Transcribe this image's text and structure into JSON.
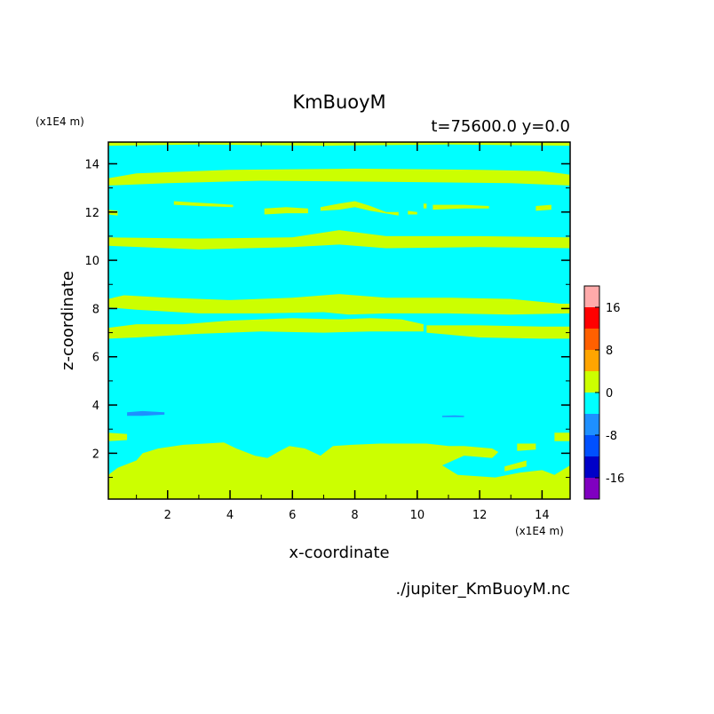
{
  "chart_data": {
    "type": "heatmap",
    "title": "KmBuoyM",
    "subtitle": "t=75600.0 y=0.0",
    "xlabel": "x-coordinate",
    "ylabel": "z-coordinate",
    "x_unit": "(x1E4 m)",
    "y_unit": "(x1E4 m)",
    "xlim": [
      0.1,
      14.9
    ],
    "ylim": [
      0.1,
      14.9
    ],
    "x_ticks": [
      2,
      4,
      6,
      8,
      10,
      12,
      14
    ],
    "y_ticks": [
      2,
      4,
      6,
      8,
      10,
      12,
      14
    ],
    "background_level_color": "#00ffff",
    "levels": [
      {
        "range": [
          -20,
          -16
        ],
        "color": "#8000c0"
      },
      {
        "range": [
          -16,
          -12
        ],
        "color": "#0000c8"
      },
      {
        "range": [
          -12,
          -8
        ],
        "color": "#0050ff"
      },
      {
        "range": [
          -8,
          -4
        ],
        "color": "#1e90ff"
      },
      {
        "range": [
          -4,
          0
        ],
        "color": "#00ffff"
      },
      {
        "range": [
          0,
          4
        ],
        "color": "#ccff00"
      },
      {
        "range": [
          4,
          8
        ],
        "color": "#ffa500"
      },
      {
        "range": [
          8,
          12
        ],
        "color": "#ff6000"
      },
      {
        "range": [
          12,
          16
        ],
        "color": "#ff0000"
      },
      {
        "range": [
          16,
          20
        ],
        "color": "#ffaaaa"
      }
    ],
    "colorbar_ticks": [
      16,
      8,
      0,
      -8,
      -16
    ],
    "positive_regions": [
      {
        "name": "band-z14.9",
        "top": [
          [
            0.1,
            14.95
          ],
          [
            14.9,
            14.95
          ]
        ],
        "bottom": [
          [
            0.1,
            14.75
          ],
          [
            3,
            14.8
          ],
          [
            7,
            14.75
          ],
          [
            11,
            14.8
          ],
          [
            14.9,
            14.75
          ]
        ]
      },
      {
        "name": "band-z13.5",
        "top": [
          [
            0.1,
            13.4
          ],
          [
            1,
            13.6
          ],
          [
            4,
            13.75
          ],
          [
            8,
            13.8
          ],
          [
            12,
            13.75
          ],
          [
            14,
            13.7
          ],
          [
            14.9,
            13.55
          ]
        ],
        "bottom": [
          [
            0.1,
            13.1
          ],
          [
            2,
            13.2
          ],
          [
            5,
            13.3
          ],
          [
            9,
            13.25
          ],
          [
            13,
            13.2
          ],
          [
            14.9,
            13.1
          ]
        ]
      },
      {
        "name": "band-z12a",
        "top": [
          [
            0.1,
            12.1
          ],
          [
            0.4,
            12.05
          ]
        ],
        "bottom": [
          [
            0.1,
            11.9
          ],
          [
            0.4,
            11.85
          ]
        ]
      },
      {
        "name": "band-z12b",
        "top": [
          [
            2.2,
            12.45
          ],
          [
            2.8,
            12.4
          ],
          [
            3.5,
            12.35
          ],
          [
            4.1,
            12.3
          ]
        ],
        "bottom": [
          [
            2.2,
            12.3
          ],
          [
            3,
            12.25
          ],
          [
            4.1,
            12.2
          ]
        ]
      },
      {
        "name": "band-z12c",
        "top": [
          [
            5.1,
            12.15
          ],
          [
            5.8,
            12.2
          ],
          [
            6.5,
            12.15
          ]
        ],
        "bottom": [
          [
            5.1,
            11.9
          ],
          [
            5.8,
            11.95
          ],
          [
            6.5,
            11.95
          ]
        ]
      },
      {
        "name": "band-z12d",
        "top": [
          [
            6.9,
            12.2
          ],
          [
            7.5,
            12.35
          ],
          [
            8,
            12.45
          ],
          [
            8.5,
            12.25
          ],
          [
            9,
            12.0
          ],
          [
            9.4,
            12.0
          ]
        ],
        "bottom": [
          [
            6.9,
            12.05
          ],
          [
            7.5,
            12.1
          ],
          [
            8,
            12.2
          ],
          [
            8.5,
            12.05
          ],
          [
            9.4,
            11.85
          ]
        ]
      },
      {
        "name": "band-z12e",
        "top": [
          [
            9.7,
            12.05
          ],
          [
            10.0,
            12.0
          ]
        ],
        "bottom": [
          [
            9.7,
            11.9
          ],
          [
            10.0,
            11.9
          ]
        ]
      },
      {
        "name": "band-z12f",
        "top": [
          [
            10.2,
            12.35
          ],
          [
            10.3,
            12.35
          ]
        ],
        "bottom": [
          [
            10.2,
            12.15
          ],
          [
            10.3,
            12.15
          ]
        ]
      },
      {
        "name": "band-z12g",
        "top": [
          [
            10.5,
            12.3
          ],
          [
            11.5,
            12.3
          ],
          [
            12.3,
            12.25
          ]
        ],
        "bottom": [
          [
            10.5,
            12.1
          ],
          [
            11.5,
            12.15
          ],
          [
            12.3,
            12.15
          ]
        ]
      },
      {
        "name": "band-z12h",
        "top": [
          [
            13.8,
            12.25
          ],
          [
            14.3,
            12.3
          ]
        ],
        "bottom": [
          [
            13.8,
            12.05
          ],
          [
            14.3,
            12.1
          ]
        ]
      },
      {
        "name": "band-z10.8",
        "top": [
          [
            0.1,
            10.95
          ],
          [
            3,
            10.9
          ],
          [
            6,
            10.95
          ],
          [
            7.5,
            11.25
          ],
          [
            9,
            11.0
          ],
          [
            12,
            11.0
          ],
          [
            14.9,
            10.95
          ]
        ],
        "bottom": [
          [
            0.1,
            10.6
          ],
          [
            3,
            10.45
          ],
          [
            6,
            10.55
          ],
          [
            7.5,
            10.65
          ],
          [
            9,
            10.5
          ],
          [
            12,
            10.55
          ],
          [
            14.9,
            10.5
          ]
        ]
      },
      {
        "name": "band-z8.3",
        "top": [
          [
            0.1,
            8.4
          ],
          [
            0.6,
            8.55
          ],
          [
            2,
            8.45
          ],
          [
            4,
            8.35
          ],
          [
            6,
            8.45
          ],
          [
            7.5,
            8.6
          ],
          [
            9,
            8.45
          ],
          [
            11,
            8.45
          ],
          [
            13,
            8.4
          ],
          [
            14.6,
            8.2
          ],
          [
            14.9,
            8.2
          ]
        ],
        "bottom": [
          [
            0.1,
            8.05
          ],
          [
            1,
            7.95
          ],
          [
            3,
            7.8
          ],
          [
            5,
            7.8
          ],
          [
            7,
            7.85
          ],
          [
            7.8,
            7.75
          ],
          [
            9,
            7.8
          ],
          [
            11,
            7.8
          ],
          [
            13,
            7.75
          ],
          [
            14.9,
            7.8
          ]
        ]
      },
      {
        "name": "band-z7",
        "top": [
          [
            0.1,
            7.2
          ],
          [
            1,
            7.35
          ],
          [
            2.5,
            7.35
          ],
          [
            4,
            7.5
          ],
          [
            6,
            7.6
          ],
          [
            7.5,
            7.55
          ],
          [
            8.5,
            7.6
          ],
          [
            9.5,
            7.55
          ],
          [
            10.2,
            7.35
          ]
        ],
        "bottom": [
          [
            0.1,
            6.75
          ],
          [
            1,
            6.8
          ],
          [
            3,
            6.95
          ],
          [
            5,
            7.05
          ],
          [
            7,
            7.0
          ],
          [
            8.5,
            7.05
          ],
          [
            10.2,
            7.05
          ]
        ]
      },
      {
        "name": "band-z7b",
        "top": [
          [
            10.3,
            7.3
          ],
          [
            12,
            7.3
          ],
          [
            14,
            7.25
          ],
          [
            14.9,
            7.25
          ]
        ],
        "bottom": [
          [
            10.3,
            7.0
          ],
          [
            12,
            6.8
          ],
          [
            14,
            6.75
          ],
          [
            14.9,
            6.75
          ]
        ]
      },
      {
        "name": "patch-z2.9",
        "top": [
          [
            0.1,
            2.85
          ],
          [
            0.7,
            2.8
          ]
        ],
        "bottom": [
          [
            0.1,
            2.5
          ],
          [
            0.7,
            2.55
          ]
        ]
      },
      {
        "name": "patch-z2.8r",
        "top": [
          [
            14.4,
            2.85
          ],
          [
            14.9,
            2.85
          ]
        ],
        "bottom": [
          [
            14.4,
            2.5
          ],
          [
            14.9,
            2.5
          ]
        ]
      },
      {
        "name": "blob-bottom",
        "top": [
          [
            0.1,
            1.1
          ],
          [
            0.4,
            1.4
          ],
          [
            1,
            1.7
          ],
          [
            1.2,
            2.0
          ],
          [
            1.7,
            2.2
          ],
          [
            2.5,
            2.35
          ],
          [
            3.2,
            2.4
          ],
          [
            3.8,
            2.45
          ],
          [
            4.2,
            2.2
          ],
          [
            4.8,
            1.9
          ],
          [
            5.2,
            1.8
          ],
          [
            5.6,
            2.1
          ],
          [
            5.9,
            2.3
          ],
          [
            6.4,
            2.2
          ],
          [
            6.9,
            1.9
          ],
          [
            7.3,
            2.3
          ],
          [
            7.9,
            2.35
          ],
          [
            8.8,
            2.4
          ],
          [
            9.6,
            2.4
          ],
          [
            10.3,
            2.4
          ],
          [
            11,
            2.3
          ],
          [
            11.5,
            2.3
          ],
          [
            12.4,
            2.2
          ],
          [
            12.6,
            2.05
          ],
          [
            12.4,
            1.8
          ],
          [
            11.5,
            1.9
          ],
          [
            10.8,
            1.5
          ],
          [
            11.3,
            1.1
          ],
          [
            12.5,
            1.0
          ],
          [
            13.3,
            1.2
          ],
          [
            14.0,
            1.3
          ],
          [
            14.4,
            1.1
          ],
          [
            14.9,
            1.5
          ],
          [
            14.9,
            0.1
          ]
        ],
        "bottom": [
          [
            0.1,
            0.1
          ],
          [
            14.9,
            0.1
          ]
        ]
      },
      {
        "name": "blob-z1.3",
        "top": [
          [
            12.8,
            1.45
          ],
          [
            13.5,
            1.7
          ]
        ],
        "bottom": [
          [
            12.8,
            1.25
          ],
          [
            13.5,
            1.45
          ]
        ]
      },
      {
        "name": "blob-z2.4",
        "top": [
          [
            13.2,
            2.4
          ],
          [
            13.8,
            2.4
          ]
        ],
        "bottom": [
          [
            13.2,
            2.1
          ],
          [
            13.8,
            2.15
          ]
        ]
      }
    ],
    "negative_regions": [
      {
        "name": "patch-z3.6",
        "color": "#1e90ff",
        "top": [
          [
            0.7,
            3.7
          ],
          [
            1.2,
            3.75
          ],
          [
            1.9,
            3.7
          ]
        ],
        "bottom": [
          [
            0.7,
            3.55
          ],
          [
            1.2,
            3.55
          ],
          [
            1.9,
            3.6
          ]
        ]
      },
      {
        "name": "patch-z3.5r",
        "color": "#1e90ff",
        "top": [
          [
            10.8,
            3.55
          ],
          [
            11.2,
            3.57
          ],
          [
            11.5,
            3.55
          ]
        ],
        "bottom": [
          [
            10.8,
            3.5
          ],
          [
            11.5,
            3.5
          ]
        ]
      }
    ]
  },
  "footer": {
    "filename": "./jupiter_KmBuoyM.nc"
  }
}
